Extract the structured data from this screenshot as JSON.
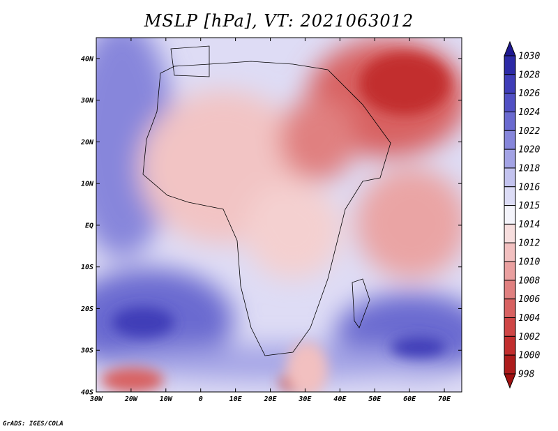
{
  "chart_data": {
    "type": "heatmap",
    "title": "MSLP [hPa], VT: 2021063012",
    "variable": "MSLP",
    "units": "hPa",
    "valid_time": "2021063012",
    "x_axis": {
      "range": [
        -30,
        75
      ],
      "ticks": [
        -30,
        -20,
        -10,
        0,
        10,
        20,
        30,
        40,
        50,
        60,
        70
      ],
      "tick_labels": [
        "30W",
        "20W",
        "10W",
        "0",
        "10E",
        "20E",
        "30E",
        "40E",
        "50E",
        "60E",
        "70E"
      ]
    },
    "y_axis": {
      "range": [
        -40,
        45
      ],
      "ticks": [
        -40,
        -30,
        -20,
        -10,
        0,
        10,
        20,
        30,
        40
      ],
      "tick_labels": [
        "40S",
        "30S",
        "20S",
        "10S",
        "EQ",
        "10N",
        "20N",
        "30N",
        "40N"
      ]
    },
    "colorbar": {
      "levels": [
        1030,
        1028,
        1026,
        1024,
        1022,
        1020,
        1018,
        1016,
        1015,
        1014,
        1012,
        1010,
        1008,
        1006,
        1004,
        1002,
        1000,
        998
      ],
      "colors_top_to_bottom": [
        "#1e1890",
        "#2c2aa6",
        "#3f3db8",
        "#5150c4",
        "#6a6ad0",
        "#8686db",
        "#a3a3e5",
        "#c3c3ef",
        "#dcdcf6",
        "#f4f4fb",
        "#f7dede",
        "#f2c0c0",
        "#eaa0a0",
        "#e08080",
        "#d86262",
        "#cf4646",
        "#c22e2e",
        "#ad1c1c",
        "#a01010"
      ]
    }
  },
  "credit": "GrADS: IGES/COLA"
}
